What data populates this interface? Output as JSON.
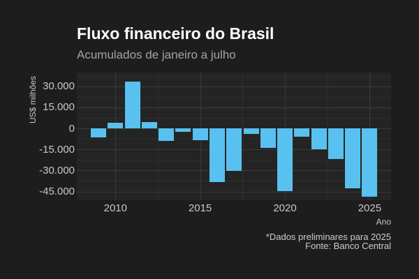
{
  "header": {
    "title": "Fluxo financeiro do Brasil",
    "subtitle": "Acumulados de janeiro a julho"
  },
  "footer": {
    "note": "*Dados preliminares para 2025",
    "source": "Fonte: Banco Central"
  },
  "chart_data": {
    "type": "bar",
    "title": "Fluxo financeiro do Brasil",
    "subtitle": "Acumulados de janeiro a julho",
    "xlabel": "Ano",
    "ylabel": "US$ milhões",
    "caption": [
      "*Dados preliminares para 2025",
      "Fonte: Banco Central"
    ],
    "unit": "US$ millions, accumulated January–July",
    "categories": [
      2009,
      2010,
      2011,
      2012,
      2013,
      2014,
      2015,
      2016,
      2017,
      2018,
      2019,
      2020,
      2021,
      2022,
      2023,
      2024,
      2025
    ],
    "values": [
      -6500,
      4200,
      33200,
      4400,
      -8800,
      -2700,
      -8300,
      -38500,
      -30500,
      -3800,
      -13800,
      -44500,
      -6100,
      -14700,
      -22000,
      -42500,
      -48900
    ],
    "ylim": [
      -51500,
      39800
    ],
    "xlim": [
      2007.7,
      2026.3
    ],
    "y_major_ticks": [
      30000,
      15000,
      0,
      -15000,
      -30000,
      -45000
    ],
    "y_tick_labels": [
      "30.000",
      "15.000",
      "0",
      "-15.000",
      "-30.000",
      "-45.000"
    ],
    "y_minor_ticks": [
      37500,
      22500,
      7500,
      -7500,
      -22500,
      -37500
    ],
    "x_major_ticks": [
      2010,
      2015,
      2020,
      2025
    ],
    "x_tick_labels": [
      "2010",
      "2015",
      "2020",
      "2025"
    ],
    "x_minor_ticks": [
      2012.5,
      2017.5,
      2022.5
    ],
    "grid": "major+minor",
    "legend": "none",
    "bar_color": "#58c1f0"
  },
  "colors": {
    "background": "#1d1d1d",
    "panel": "#242424",
    "grid_major": "#3b3b3b",
    "grid_minor": "#2e2e2e",
    "bar": "#58c1f0",
    "title": "#ffffff",
    "subtitle": "#a3a3a3",
    "tick_label": "#c8c8c8",
    "caption": "#cccccc"
  }
}
